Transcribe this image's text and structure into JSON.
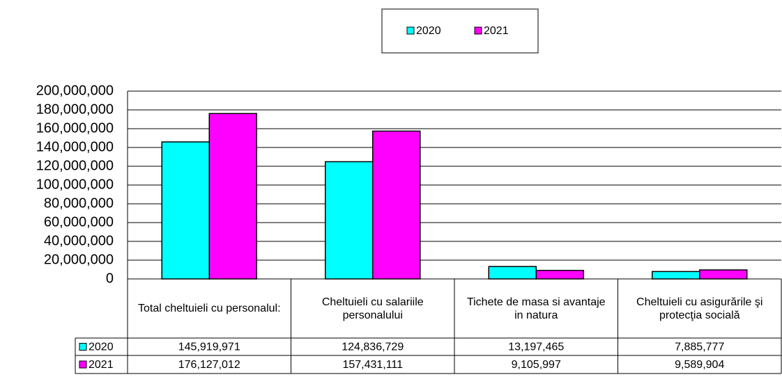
{
  "chart_data": {
    "type": "bar",
    "categories": [
      "Total cheltuieli cu personalul:",
      "Cheltuieli cu salariile personalului",
      "Tichete de masa si avantaje in natura",
      "Cheltuieli cu asigurările şi protecţia socială"
    ],
    "series": [
      {
        "name": "2020",
        "color": "#00ffff",
        "values": [
          145919971,
          124836729,
          13197465,
          7885777
        ],
        "value_labels": [
          "145,919,971",
          "124,836,729",
          "13,197,465",
          "7,885,777"
        ]
      },
      {
        "name": "2021",
        "color": "#ff00ff",
        "values": [
          176127012,
          157431111,
          9105997,
          9589904
        ],
        "value_labels": [
          "176,127,012",
          "157,431,111",
          "9,105,997",
          "9,589,904"
        ]
      }
    ],
    "ylim": [
      0,
      200000000
    ],
    "yticks": [
      0,
      {
        "value": 20000000,
        "label": "20,000,000"
      },
      {
        "value": 40000000,
        "label": "40,000,000"
      },
      {
        "value": 60000000,
        "label": "60,000,000"
      },
      {
        "value": 80000000,
        "label": "80,000,000"
      },
      {
        "value": 100000000,
        "label": "100,000,000"
      },
      {
        "value": 120000000,
        "label": "120,000,000"
      },
      {
        "value": 140000000,
        "label": "140,000,000"
      },
      {
        "value": 160000000,
        "label": "160,000,000"
      },
      {
        "value": 180000000,
        "label": "180,000,000"
      },
      {
        "value": 200000000,
        "label": "200,000,000"
      }
    ],
    "grid": true,
    "legend": "top"
  }
}
